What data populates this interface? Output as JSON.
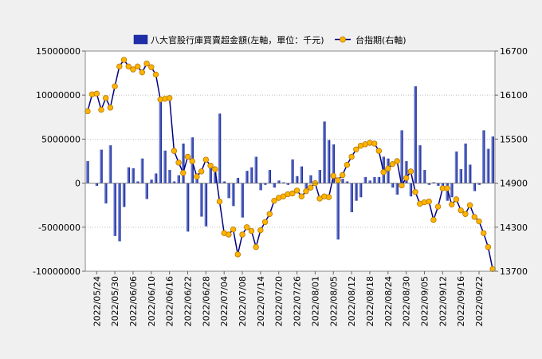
{
  "legend": {
    "bar_label": "八大官股行庫買賣超金額(左軸，單位：千元)",
    "line_label": "台指期(右軸)"
  },
  "colors": {
    "background": "#f0f0f0",
    "plot_background": "#ffffff",
    "bar_light": "#8fa0e6",
    "bar_dark": "#0b1a8c",
    "line": "#000080",
    "marker_fill": "#ffb400",
    "marker_stroke": "#b87800",
    "grid": "#b4b4b4"
  },
  "chart_data": {
    "type": "bar+line",
    "left_axis": {
      "min": -10000000,
      "max": 15000000,
      "ticks": [
        15000000,
        10000000,
        5000000,
        0,
        -5000000,
        -10000000
      ],
      "tick_labels": [
        "15000000",
        "10000000",
        "5000000",
        "0",
        "-5000000",
        "-10000000"
      ]
    },
    "right_axis": {
      "min": 13700,
      "max": 16700,
      "ticks": [
        16700,
        16100,
        15500,
        14900,
        14300,
        13700
      ],
      "tick_labels": [
        "16700",
        "16100",
        "15500",
        "14900",
        "14300",
        "13700"
      ]
    },
    "grid": true,
    "legend_position": "top",
    "x_tick_labels": [
      "2022/05/24",
      "2022/05/30",
      "2022/06/06",
      "2022/06/10",
      "2022/06/16",
      "2022/06/22",
      "2022/06/28",
      "2022/07/04",
      "2022/07/08",
      "2022/07/14",
      "2022/07/20",
      "2022/07/26",
      "2022/08/01",
      "2022/08/05",
      "2022/08/12",
      "2022/08/18",
      "2022/08/24",
      "2022/08/30",
      "2022/09/05",
      "2022/09/12",
      "2022/09/16",
      "2022/09/22"
    ],
    "x_tick_positions": [
      2.5,
      6.5,
      10.5,
      14.5,
      18.5,
      22.5,
      26.5,
      30.5,
      34.5,
      38.5,
      42.5,
      46.5,
      50.5,
      54.5,
      58.5,
      62.5,
      66.5,
      70.5,
      74.5,
      78.5,
      82.5,
      86.5
    ],
    "bar_series": {
      "name": "八大官股行庫買賣超金額(左軸，單位：千元)",
      "values": [
        2500000,
        0,
        -300000,
        3800000,
        -2300000,
        4300000,
        -6000000,
        -6600000,
        -2700000,
        1800000,
        1700000,
        200000,
        2800000,
        -1800000,
        400000,
        1100000,
        9700000,
        3700000,
        1500000,
        200000,
        900000,
        4500000,
        -5500000,
        5200000,
        1100000,
        -3800000,
        -4900000,
        2000000,
        1200000,
        7900000,
        200000,
        -1700000,
        -2600000,
        600000,
        -3900000,
        1400000,
        1800000,
        3000000,
        -800000,
        -200000,
        1500000,
        -500000,
        300000,
        100000,
        -200000,
        2700000,
        800000,
        1900000,
        -600000,
        900000,
        200000,
        1500000,
        7000000,
        4900000,
        4400000,
        -6400000,
        500000,
        200000,
        -3300000,
        -2000000,
        -1600000,
        700000,
        300000,
        700000,
        700000,
        3000000,
        2800000,
        -500000,
        -1300000,
        6000000,
        2500000,
        -1500000,
        11000000,
        4300000,
        1500000,
        -200000,
        100000,
        -300000,
        -400000,
        -2000000,
        -1600000,
        3600000,
        1600000,
        4500000,
        2100000,
        -900000,
        -200000,
        6000000,
        3900000,
        5300000
      ]
    },
    "line_series": {
      "name": "台指期(右軸)",
      "values": [
        15880,
        16110,
        16120,
        15900,
        16060,
        15930,
        16220,
        16490,
        16580,
        16490,
        16450,
        16490,
        16410,
        16530,
        16480,
        16380,
        16040,
        16050,
        16060,
        15340,
        15180,
        15040,
        15260,
        15200,
        14990,
        15060,
        15220,
        15140,
        15090,
        14650,
        14220,
        14200,
        14270,
        13930,
        14200,
        14300,
        14250,
        14030,
        14260,
        14370,
        14480,
        14660,
        14700,
        14720,
        14750,
        14760,
        14800,
        14720,
        14790,
        14840,
        14900,
        14690,
        14720,
        14710,
        15000,
        14940,
        15010,
        15150,
        15260,
        15360,
        15410,
        15430,
        15450,
        15440,
        15340,
        15050,
        15100,
        15160,
        15200,
        14870,
        14970,
        15060,
        14780,
        14620,
        14640,
        14650,
        14400,
        14580,
        14830,
        14830,
        14610,
        14680,
        14530,
        14480,
        14600,
        14440,
        14380,
        14220,
        14030,
        13730
      ]
    }
  }
}
